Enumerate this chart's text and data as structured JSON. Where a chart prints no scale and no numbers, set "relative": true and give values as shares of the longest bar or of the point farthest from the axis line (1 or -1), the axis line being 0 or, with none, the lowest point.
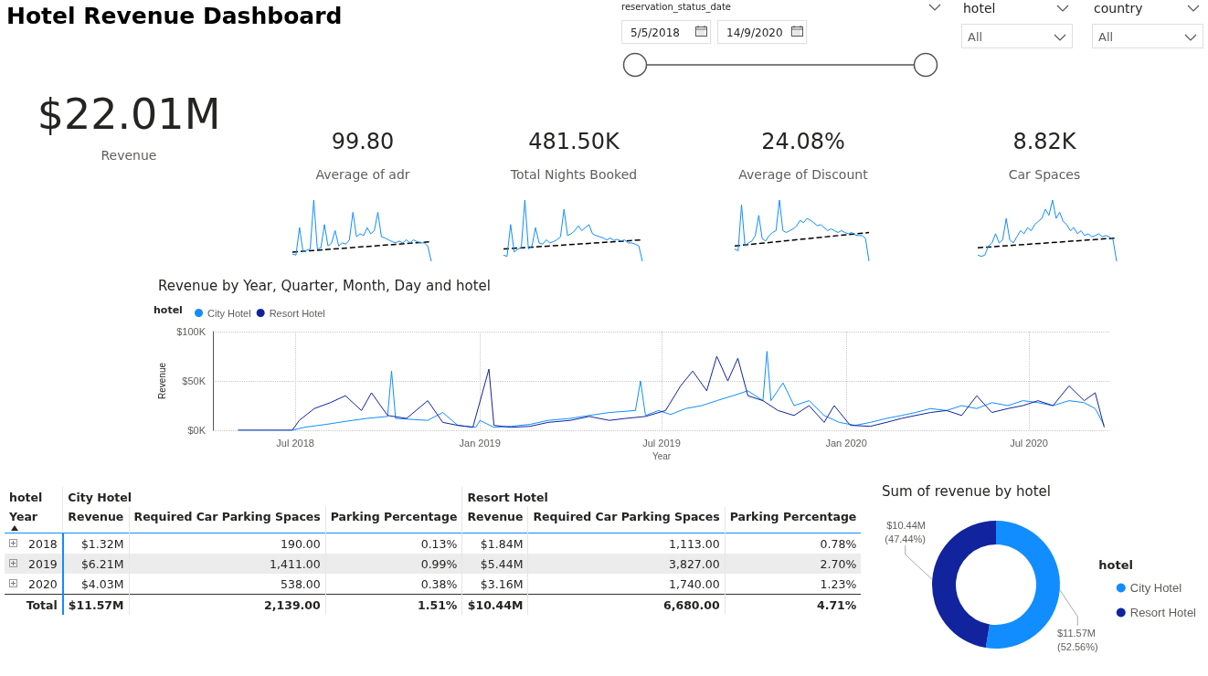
{
  "chart_data": [
    {
      "type": "other",
      "title": "Hotel Revenue Dashboard",
      "categories": [
        "Revenue",
        "Average of adr",
        "Total Nights Booked",
        "Average of Discount",
        "Car Spaces"
      ],
      "value_labels": [
        "$22.01M",
        "99.80",
        "481.50K",
        "24.08%",
        "8.82K"
      ]
    },
    {
      "type": "other",
      "categories": [
        "reservation_status_date",
        "hotel",
        "country"
      ],
      "annotations": [
        "5/5/2018",
        "14/9/2020",
        "All",
        "All"
      ]
    },
    {
      "type": "line",
      "relative": true,
      "categories": [
        null,
        null,
        null,
        null,
        null,
        null,
        null,
        null,
        null,
        null,
        null,
        null,
        null,
        null,
        null,
        null,
        null,
        null,
        null,
        null,
        null,
        null,
        null,
        null,
        null,
        null,
        null,
        null,
        null,
        null,
        null,
        null,
        null,
        null,
        null,
        null,
        null,
        null,
        null,
        null
      ],
      "series": [
        {
          "color": "#118dff",
          "values": [
            0.12,
            0.1,
            0.55,
            0.15,
            0.18,
            0.2,
            1.0,
            0.2,
            0.22,
            0.6,
            0.25,
            0.3,
            0.5,
            0.25,
            0.3,
            0.28,
            0.35,
            0.8,
            0.4,
            0.45,
            0.42,
            0.55,
            0.45,
            0.5,
            0.8,
            0.4,
            0.38,
            0.35,
            0.32,
            0.3,
            0.33,
            0.3,
            0.35,
            0.3,
            0.35,
            0.32,
            0.3,
            0.3,
            0.25,
            0
          ]
        },
        {
          "color": "#000000",
          "line_style": "dashed",
          "values": [
            0.15,
            null,
            null,
            null,
            null,
            null,
            null,
            null,
            null,
            null,
            null,
            null,
            null,
            null,
            null,
            null,
            null,
            null,
            null,
            null,
            null,
            null,
            null,
            null,
            null,
            null,
            null,
            null,
            null,
            null,
            null,
            null,
            null,
            null,
            null,
            null,
            null,
            null,
            null,
            0.32
          ]
        }
      ]
    },
    {
      "type": "line",
      "relative": true,
      "categories": [
        null,
        null,
        null,
        null,
        null,
        null,
        null,
        null,
        null,
        null,
        null,
        null,
        null,
        null,
        null,
        null,
        null,
        null,
        null,
        null,
        null,
        null,
        null,
        null,
        null,
        null,
        null,
        null,
        null,
        null,
        null,
        null,
        null,
        null,
        null,
        null,
        null,
        null,
        null,
        null
      ],
      "series": [
        {
          "color": "#118dff",
          "values": [
            0.1,
            0.08,
            0.6,
            0.15,
            0.2,
            0.22,
            1.0,
            0.2,
            0.25,
            0.55,
            0.3,
            0.28,
            0.35,
            0.3,
            0.32,
            0.35,
            0.4,
            0.85,
            0.42,
            0.45,
            0.5,
            0.58,
            0.5,
            0.55,
            0.6,
            0.45,
            0.42,
            0.4,
            0.38,
            0.35,
            0.38,
            0.34,
            0.36,
            0.33,
            0.35,
            0.3,
            0.3,
            0.28,
            0.25,
            0
          ]
        },
        {
          "color": "#000000",
          "line_style": "dashed",
          "values": [
            0.2,
            null,
            null,
            null,
            null,
            null,
            null,
            null,
            null,
            null,
            null,
            null,
            null,
            null,
            null,
            null,
            null,
            null,
            null,
            null,
            null,
            null,
            null,
            null,
            null,
            null,
            null,
            null,
            null,
            null,
            null,
            null,
            null,
            null,
            null,
            null,
            null,
            null,
            null,
            0.35
          ]
        }
      ]
    },
    {
      "type": "line",
      "relative": true,
      "categories": [
        null,
        null,
        null,
        null,
        null,
        null,
        null,
        null,
        null,
        null,
        null,
        null,
        null,
        null,
        null,
        null,
        null,
        null,
        null,
        null,
        null,
        null,
        null,
        null,
        null,
        null,
        null,
        null,
        null,
        null,
        null,
        null,
        null,
        null,
        null,
        null,
        null,
        null,
        null,
        null
      ],
      "series": [
        {
          "color": "#118dff",
          "values": [
            0.2,
            0.17,
            0.92,
            0.25,
            0.3,
            0.33,
            0.42,
            0.75,
            0.37,
            0.33,
            0.42,
            0.47,
            0.5,
            1.0,
            0.5,
            0.47,
            0.5,
            0.53,
            0.58,
            0.67,
            0.63,
            0.7,
            0.67,
            0.63,
            0.58,
            0.6,
            0.55,
            0.5,
            0.53,
            0.5,
            0.47,
            0.5,
            0.47,
            0.45,
            0.47,
            0.43,
            0.42,
            0.42,
            0.37,
            0
          ]
        },
        {
          "color": "#000000",
          "line_style": "dashed",
          "values": [
            0.25,
            null,
            null,
            null,
            null,
            null,
            null,
            null,
            null,
            null,
            null,
            null,
            null,
            null,
            null,
            null,
            null,
            null,
            null,
            null,
            null,
            null,
            null,
            null,
            null,
            null,
            null,
            null,
            null,
            null,
            null,
            null,
            null,
            null,
            null,
            null,
            null,
            null,
            null,
            0.47
          ]
        }
      ]
    },
    {
      "type": "line",
      "relative": true,
      "categories": [
        null,
        null,
        null,
        null,
        null,
        null,
        null,
        null,
        null,
        null,
        null,
        null,
        null,
        null,
        null,
        null,
        null,
        null,
        null,
        null,
        null,
        null,
        null,
        null,
        null,
        null,
        null,
        null,
        null,
        null,
        null,
        null,
        null,
        null,
        null,
        null,
        null,
        null,
        null,
        null
      ],
      "series": [
        {
          "color": "#118dff",
          "values": [
            0.1,
            0.08,
            0.1,
            0.25,
            0.3,
            0.45,
            0.3,
            0.35,
            0.7,
            0.35,
            0.3,
            0.4,
            0.5,
            0.45,
            0.55,
            0.5,
            0.6,
            0.65,
            0.7,
            0.85,
            0.75,
            1.0,
            0.7,
            0.8,
            0.65,
            0.6,
            0.5,
            0.55,
            0.45,
            0.5,
            0.42,
            0.45,
            0.4,
            0.42,
            0.45,
            0.4,
            0.42,
            0.4,
            0.35,
            0
          ]
        },
        {
          "color": "#000000",
          "line_style": "dashed",
          "values": [
            0.22,
            null,
            null,
            null,
            null,
            null,
            null,
            null,
            null,
            null,
            null,
            null,
            null,
            null,
            null,
            null,
            null,
            null,
            null,
            null,
            null,
            null,
            null,
            null,
            null,
            null,
            null,
            null,
            null,
            null,
            null,
            null,
            null,
            null,
            null,
            null,
            null,
            null,
            null,
            0.38
          ]
        }
      ]
    },
    {
      "type": "line",
      "title": "Revenue by Year, Quarter, Month, Day and hotel",
      "xlabel": "Year",
      "ylabel": "Revenue",
      "legend_title": "hotel",
      "legend": "top left",
      "grid": true,
      "xlim": [
        "2018-04-10",
        "2020-09-20"
      ],
      "xticks": [
        {
          "value": "2018-07-01",
          "label": "Jul 2018"
        },
        {
          "value": "2019-01-01",
          "label": "Jan 2019"
        },
        {
          "value": "2019-07-01",
          "label": "Jul 2019"
        },
        {
          "value": "2020-01-01",
          "label": "Jan 2020"
        },
        {
          "value": "2020-07-01",
          "label": "Jul 2020"
        }
      ],
      "ylim": [
        0,
        100
      ],
      "yticks": [
        {
          "value": 0,
          "label": "$0K"
        },
        {
          "value": 50,
          "label": "$50K"
        },
        {
          "value": 100,
          "label": "$100K"
        }
      ],
      "series": [
        {
          "name": "City Hotel",
          "color": "#118dff",
          "x": [
            "2018-05-05",
            "2018-06-15",
            "2018-06-28",
            "2018-07-10",
            "2018-08-01",
            "2018-08-20",
            "2018-09-10",
            "2018-10-01",
            "2018-10-05",
            "2018-10-09",
            "2018-11-10",
            "2018-11-25",
            "2018-12-10",
            "2018-12-28",
            "2019-01-01",
            "2019-01-15",
            "2019-02-01",
            "2019-02-20",
            "2019-03-10",
            "2019-04-01",
            "2019-04-20",
            "2019-05-10",
            "2019-06-05",
            "2019-06-10",
            "2019-06-15",
            "2019-06-28",
            "2019-07-10",
            "2019-07-25",
            "2019-08-10",
            "2019-08-25",
            "2019-09-10",
            "2019-09-25",
            "2019-10-10",
            "2019-10-14",
            "2019-10-18",
            "2019-10-30",
            "2019-11-10",
            "2019-11-25",
            "2019-12-10",
            "2019-12-25",
            "2020-01-10",
            "2020-01-25",
            "2020-02-10",
            "2020-02-25",
            "2020-03-10",
            "2020-03-25",
            "2020-04-10",
            "2020-04-25",
            "2020-05-10",
            "2020-05-25",
            "2020-06-10",
            "2020-06-25",
            "2020-07-10",
            "2020-07-25",
            "2020-08-10",
            "2020-08-25",
            "2020-09-05",
            "2020-09-14"
          ],
          "values": [
            0,
            0,
            0,
            3,
            6,
            9,
            12,
            14,
            60,
            12,
            10,
            18,
            5,
            3,
            10,
            3,
            4,
            6,
            10,
            12,
            15,
            18,
            20,
            50,
            15,
            20,
            16,
            22,
            25,
            30,
            35,
            40,
            30,
            80,
            30,
            48,
            25,
            30,
            15,
            8,
            5,
            8,
            12,
            15,
            18,
            22,
            20,
            25,
            22,
            28,
            25,
            30,
            28,
            25,
            30,
            28,
            22,
            5
          ]
        },
        {
          "name": "Resort Hotel",
          "color": "#12239e",
          "x": [
            "2018-05-05",
            "2018-06-28",
            "2018-07-05",
            "2018-07-20",
            "2018-08-05",
            "2018-08-20",
            "2018-09-05",
            "2018-09-15",
            "2018-10-01",
            "2018-10-20",
            "2018-11-10",
            "2018-11-25",
            "2018-12-10",
            "2018-12-25",
            "2019-01-10",
            "2019-01-15",
            "2019-02-01",
            "2019-02-20",
            "2019-03-10",
            "2019-04-01",
            "2019-04-20",
            "2019-05-10",
            "2019-05-26",
            "2019-06-15",
            "2019-07-05",
            "2019-07-20",
            "2019-08-01",
            "2019-08-15",
            "2019-08-25",
            "2019-09-05",
            "2019-09-15",
            "2019-09-25",
            "2019-10-10",
            "2019-10-25",
            "2019-11-10",
            "2019-11-25",
            "2019-12-10",
            "2019-12-20",
            "2020-01-05",
            "2020-01-25",
            "2020-02-10",
            "2020-02-25",
            "2020-03-10",
            "2020-03-25",
            "2020-04-10",
            "2020-04-25",
            "2020-05-10",
            "2020-05-25",
            "2020-06-10",
            "2020-06-25",
            "2020-07-10",
            "2020-07-25",
            "2020-08-10",
            "2020-08-25",
            "2020-09-05",
            "2020-09-14"
          ],
          "values": [
            0,
            0,
            10,
            22,
            28,
            35,
            20,
            38,
            15,
            12,
            30,
            8,
            5,
            3,
            62,
            5,
            3,
            4,
            8,
            10,
            14,
            10,
            12,
            14,
            20,
            45,
            60,
            40,
            75,
            50,
            73,
            35,
            30,
            20,
            15,
            25,
            8,
            25,
            5,
            4,
            8,
            12,
            15,
            18,
            20,
            15,
            35,
            18,
            22,
            25,
            30,
            25,
            45,
            30,
            38,
            3
          ]
        }
      ]
    },
    {
      "type": "other",
      "legend_title": "hotel",
      "ylabel": "Year",
      "annotations": [
        "City Hotel",
        "Resort Hotel"
      ],
      "categories": [
        "Revenue",
        "Required Car Parking Spaces",
        "Parking Percentage",
        "Revenue",
        "Required Car Parking Spaces",
        "Parking Percentage"
      ],
      "y_categories": [
        "2018",
        "2019",
        "2020",
        "Total"
      ],
      "cell_labels": [
        [
          "$1.32M",
          "190.00",
          "0.13%",
          "$1.84M",
          "1,113.00",
          "0.78%"
        ],
        [
          "$6.21M",
          "1,411.00",
          "0.99%",
          "$5.44M",
          "3,827.00",
          "2.70%"
        ],
        [
          "$4.03M",
          "538.00",
          "0.38%",
          "$3.16M",
          "1,740.00",
          "1.23%"
        ],
        [
          "$11.57M",
          "2,139.00",
          "1.51%",
          "$10.44M",
          "6,680.00",
          "4.71%"
        ]
      ]
    },
    {
      "type": "donut",
      "title": "Sum of revenue by hotel",
      "legend_title": "hotel",
      "legend": "right",
      "categories": [
        "City Hotel",
        "Resort Hotel"
      ],
      "values": [
        52.56,
        47.44
      ],
      "colors": [
        "#118dff",
        "#12239e"
      ],
      "value_labels": [
        "$11.57M (52.56%)",
        "$10.44M (47.44%)"
      ]
    }
  ]
}
